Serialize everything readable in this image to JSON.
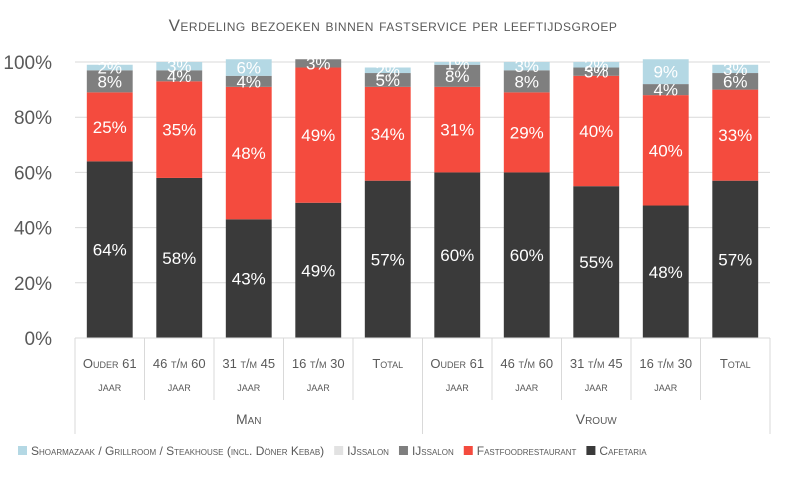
{
  "chart_data": {
    "type": "bar",
    "stacked": true,
    "title": "Verdeling bezoeken binnen fastservice per leeftijdsgroep",
    "y_ticks": [
      "0%",
      "20%",
      "40%",
      "60%",
      "80%",
      "100%"
    ],
    "ylim": [
      0,
      100
    ],
    "categories": [
      [
        "Ouder 61",
        "jaar"
      ],
      [
        "46 t/m 60",
        "jaar"
      ],
      [
        "31 t/m 45",
        "jaar"
      ],
      [
        "16 t/m 30",
        "jaar"
      ],
      [
        "Total",
        ""
      ],
      [
        "Ouder 61",
        "jaar"
      ],
      [
        "46 t/m 60",
        "jaar"
      ],
      [
        "31 t/m 45",
        "jaar"
      ],
      [
        "16 t/m 30",
        "jaar"
      ],
      [
        "Total",
        ""
      ]
    ],
    "groups": [
      {
        "label": "Man",
        "start": 0,
        "count": 5
      },
      {
        "label": "Vrouw",
        "start": 5,
        "count": 5
      }
    ],
    "series": [
      {
        "name": "Cafetaria",
        "color": "#3a3a3a",
        "values": [
          64,
          58,
          43,
          49,
          57,
          60,
          60,
          55,
          48,
          57
        ]
      },
      {
        "name": "Fastfoodrestaurant",
        "color": "#f44b3e",
        "values": [
          25,
          35,
          48,
          49,
          34,
          31,
          29,
          40,
          40,
          33
        ]
      },
      {
        "name": "IJssalon",
        "color": "#7f7f7f",
        "values": [
          8,
          4,
          4,
          3,
          5,
          8,
          8,
          3,
          4,
          6
        ]
      },
      {
        "name": "IJssalon",
        "color": "#e2e2e2",
        "values": [
          0,
          0,
          0,
          0,
          0,
          0,
          0,
          0,
          0,
          0
        ]
      },
      {
        "name": "Shoarmazaak / Grillroom / Steakhouse (incl. Döner Kebab)",
        "color": "#b4d8e4",
        "values": [
          2,
          3,
          6,
          0,
          2,
          1,
          3,
          2,
          9,
          3
        ]
      }
    ],
    "legend_order": [
      4,
      3,
      2,
      1,
      0
    ],
    "legend_position": "bottom",
    "grid": true
  }
}
